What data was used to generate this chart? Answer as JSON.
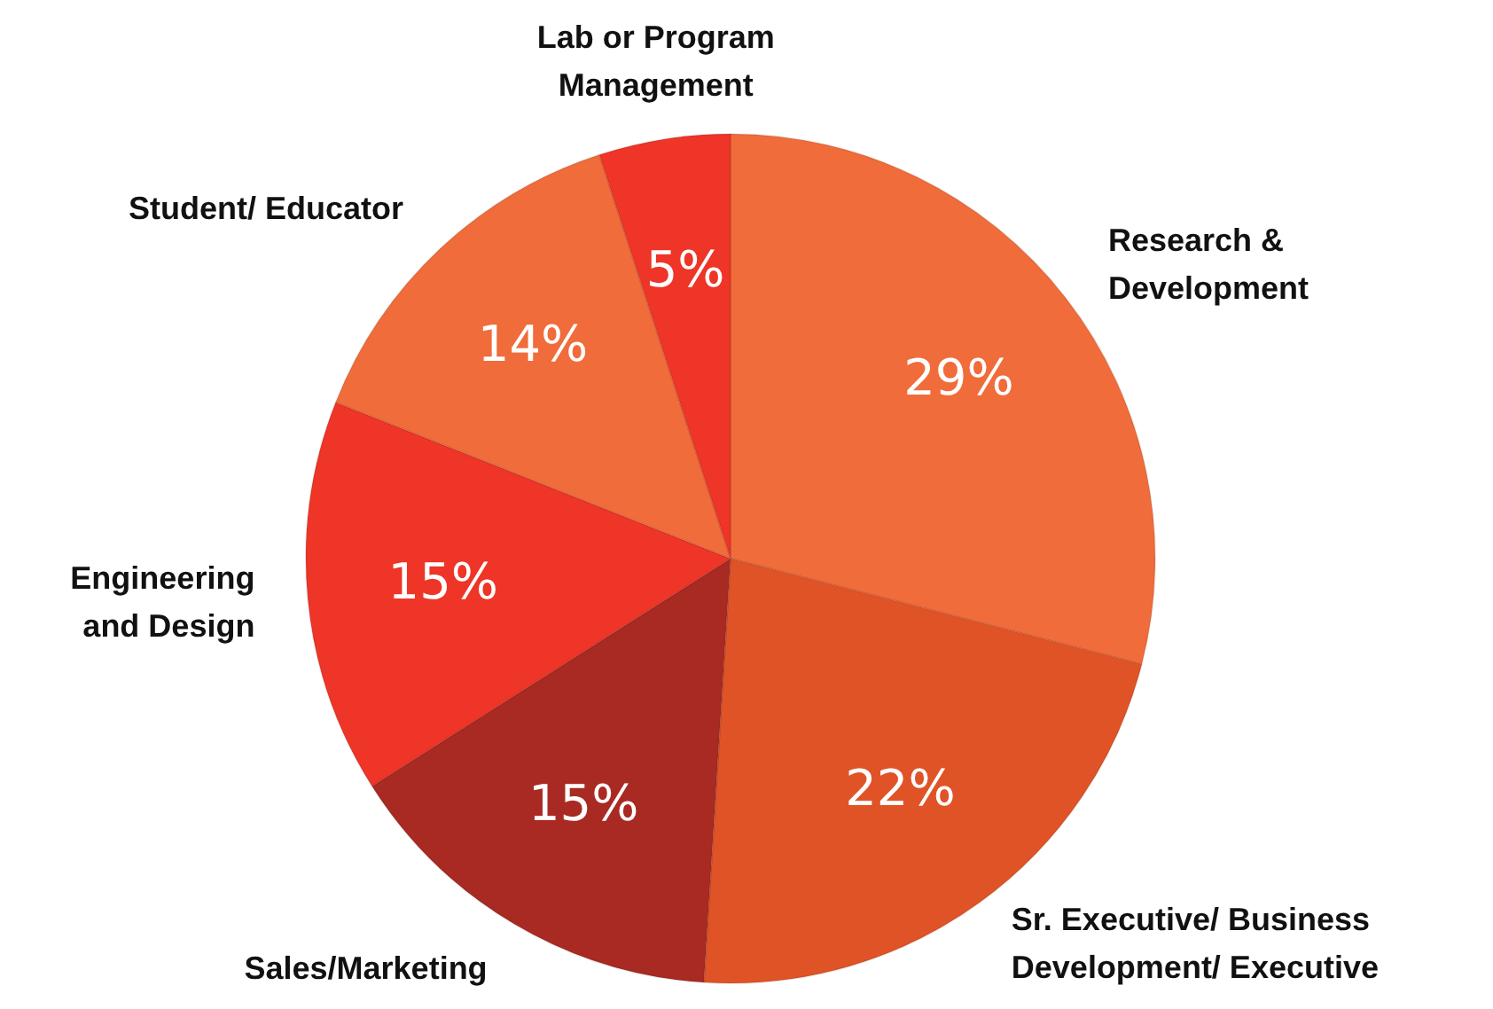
{
  "chart_data": {
    "type": "pie",
    "categories": [
      "Research & Development",
      "Sr. Executive/ Business Development/ Executive",
      "Sales/Marketing",
      "Engineering and Design",
      "Student/ Educator",
      "Lab or Program Management"
    ],
    "values": [
      29,
      22,
      15,
      15,
      14,
      5
    ],
    "value_labels": [
      "29%",
      "22%",
      "15%",
      "15%",
      "14%",
      "5%"
    ],
    "colors": [
      "#f06c3b",
      "#e05327",
      "#a82a22",
      "#ee3527",
      "#f06c3b",
      "#ee3527"
    ],
    "legend": false
  }
}
